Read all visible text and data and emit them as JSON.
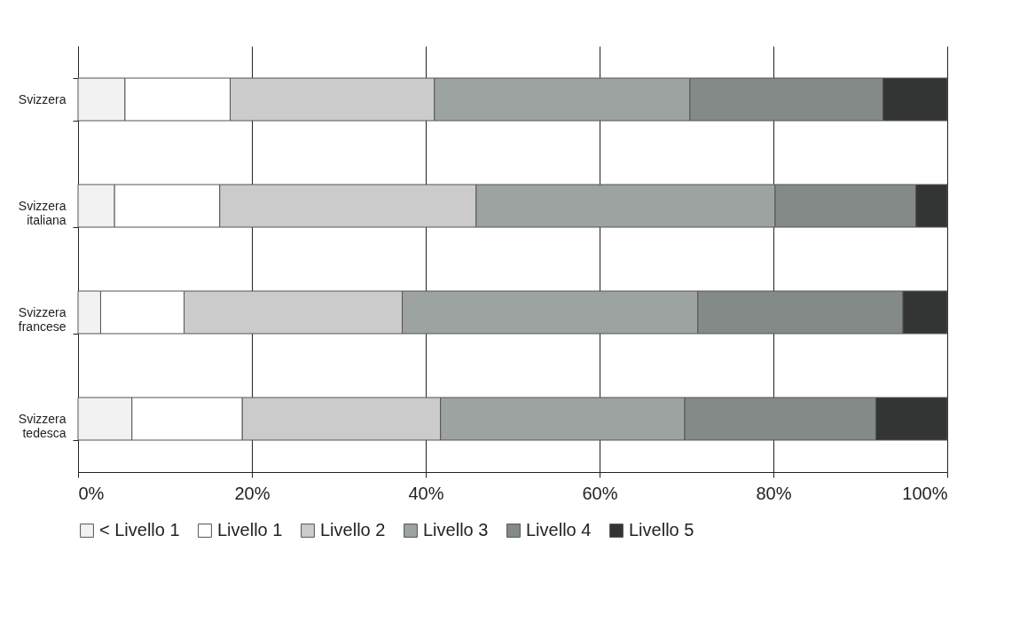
{
  "chart_data": {
    "type": "bar",
    "orientation": "horizontal",
    "stacked": true,
    "categories": [
      "Svizzera",
      "Svizzera italiana",
      "Svizzera francese",
      "Svizzera tedesca"
    ],
    "series": [
      {
        "name": "< Livello 1",
        "color": "#f2f2f2",
        "values": [
          5.4,
          4.2,
          2.6,
          6.2
        ]
      },
      {
        "name": "Livello 1",
        "color": "#ffffff",
        "values": [
          12.1,
          12.1,
          9.6,
          12.7
        ]
      },
      {
        "name": "Livello 2",
        "color": "#cbcbcb",
        "values": [
          23.5,
          29.5,
          25.1,
          22.8
        ]
      },
      {
        "name": "Livello 3",
        "color": "#9da3a1",
        "values": [
          29.4,
          34.4,
          34.0,
          28.1
        ]
      },
      {
        "name": "Livello 4",
        "color": "#838a88",
        "values": [
          22.2,
          16.2,
          23.6,
          22.0
        ]
      },
      {
        "name": "Livello 5",
        "color": "#333535",
        "values": [
          7.4,
          3.6,
          5.1,
          8.2
        ]
      }
    ],
    "xlim": [
      0,
      100
    ],
    "xticks": [
      {
        "value": 0,
        "label": "0%"
      },
      {
        "value": 20,
        "label": "20%"
      },
      {
        "value": 40,
        "label": "40%"
      },
      {
        "value": 60,
        "label": "60%"
      },
      {
        "value": 80,
        "label": "80%"
      },
      {
        "value": 100,
        "label": "100%"
      }
    ],
    "grid": "x",
    "legend": "bottom"
  }
}
